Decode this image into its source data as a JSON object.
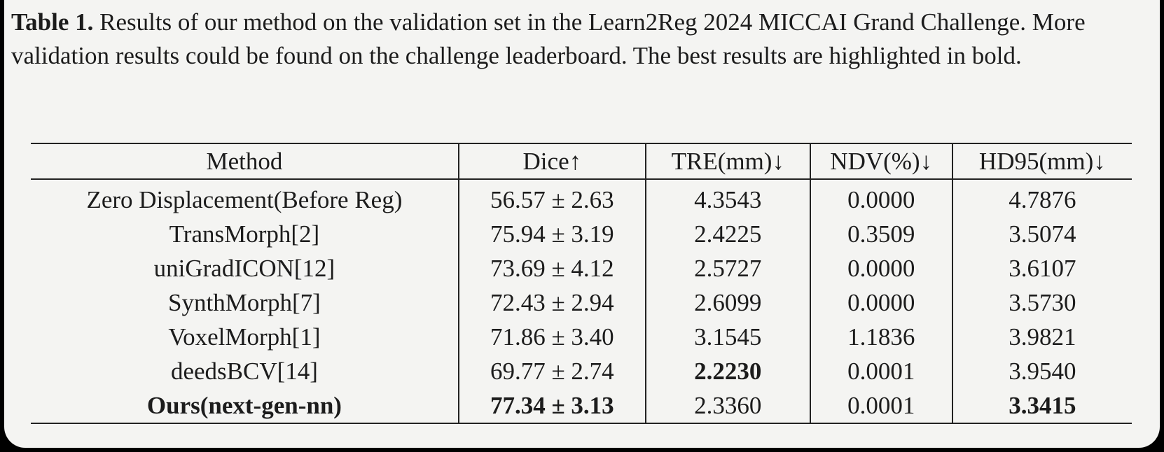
{
  "caption": {
    "label": "Table 1.",
    "text": "Results of our method on the validation set in the Learn2Reg 2024 MICCAI Grand Challenge. More validation results could be found on the challenge leaderboard. The best results are highlighted in bold."
  },
  "table": {
    "headers": [
      "Method",
      "Dice↑",
      "TRE(mm)↓",
      "NDV(%)↓",
      "HD95(mm)↓"
    ],
    "rows": [
      [
        "Zero Displacement(Before Reg)",
        "56.57 ± 2.63",
        "4.3543",
        "0.0000",
        "4.7876"
      ],
      [
        "TransMorph[2]",
        "75.94 ± 3.19",
        "2.4225",
        "0.3509",
        "3.5074"
      ],
      [
        "uniGradICON[12]",
        "73.69 ± 4.12",
        "2.5727",
        "0.0000",
        "3.6107"
      ],
      [
        "SynthMorph[7]",
        "72.43 ± 2.94",
        "2.6099",
        "0.0000",
        "3.5730"
      ],
      [
        "VoxelMorph[1]",
        "71.86 ± 3.40",
        "3.1545",
        "1.1836",
        "3.9821"
      ],
      [
        "deedsBCV[14]",
        "69.77 ± 2.74",
        "2.2230",
        "0.0001",
        "3.9540"
      ],
      [
        "Ours(next-gen-nn)",
        "77.34 ± 3.13",
        "2.3360",
        "0.0001",
        "3.3415"
      ]
    ],
    "bold_cells": [
      [
        5,
        2
      ],
      [
        6,
        0
      ],
      [
        6,
        1
      ],
      [
        6,
        4
      ]
    ]
  }
}
